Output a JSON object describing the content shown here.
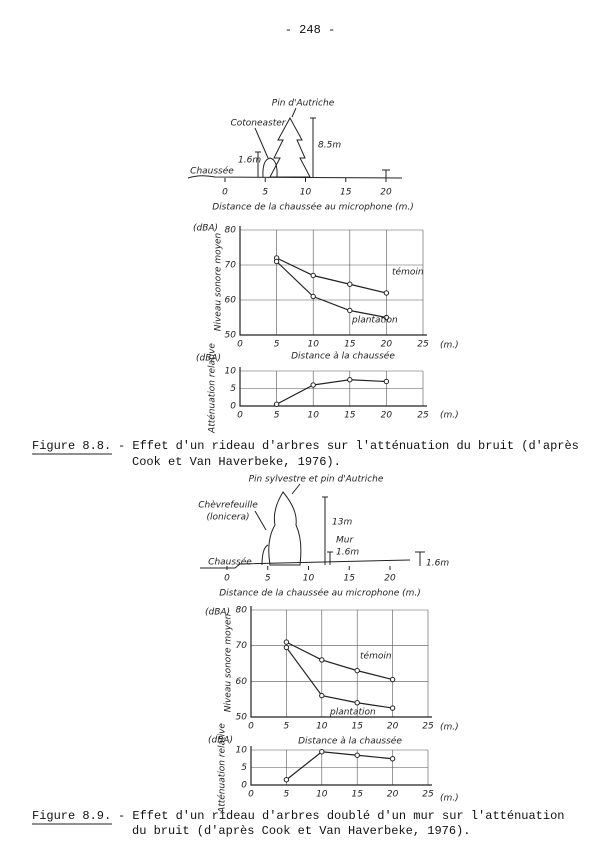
{
  "page_number": "- 248 -",
  "diagrams": [
    {
      "labels": [
        "Pin d'Autriche",
        "Cotoneaster",
        "1.6m",
        "8.5m",
        "Chaussée"
      ],
      "ticks": [
        0,
        5,
        10,
        15,
        20
      ],
      "axis_title": "Distance de la chaussée au microphone (m.)"
    },
    {
      "labels": [
        "Pin sylvestre et pin d'Autriche",
        "Chèvrefeuille",
        "(lonicera)",
        "13m",
        "Mur",
        "1.6m",
        "Chaussée",
        "1.6m"
      ],
      "ticks": [
        0,
        5,
        10,
        15,
        20
      ],
      "axis_title": "Distance de la chaussée au microphone (m.)"
    }
  ],
  "chart_data": [
    {
      "type": "line",
      "y_unit": "(dBA)",
      "x_unit": "(m.)",
      "ylabel": "Niveau sonore moyen",
      "xlabel": "Distance à la chaussée",
      "x": [
        5,
        10,
        15,
        20
      ],
      "xlim": [
        0,
        25
      ],
      "ylim": [
        50,
        80
      ],
      "xticks": [
        0,
        5,
        10,
        15,
        20,
        25
      ],
      "yticks": [
        50,
        60,
        70,
        80
      ],
      "grid": true,
      "series": [
        {
          "name": "témoin",
          "values": [
            72,
            67,
            64.5,
            62
          ]
        },
        {
          "name": "plantation",
          "values": [
            71,
            61,
            57,
            55
          ]
        }
      ]
    },
    {
      "type": "line",
      "y_unit": "(dBA)",
      "x_unit": "(m.)",
      "ylabel": "Atténuation relative",
      "x": [
        5,
        10,
        15,
        20
      ],
      "xlim": [
        0,
        25
      ],
      "ylim": [
        0,
        10
      ],
      "xticks": [
        0,
        5,
        10,
        15,
        20,
        25
      ],
      "yticks": [
        0,
        5,
        10
      ],
      "grid": true,
      "series": [
        {
          "values": [
            0.5,
            6,
            7.5,
            7
          ]
        }
      ]
    },
    {
      "type": "line",
      "y_unit": "(dBA)",
      "x_unit": "(m.)",
      "ylabel": "Niveau sonore moyen",
      "xlabel": "Distance à la chaussée",
      "x": [
        5,
        10,
        15,
        20
      ],
      "xlim": [
        0,
        25
      ],
      "ylim": [
        50,
        80
      ],
      "xticks": [
        0,
        5,
        10,
        15,
        20,
        25
      ],
      "yticks": [
        50,
        60,
        70,
        80
      ],
      "grid": true,
      "series": [
        {
          "name": "témoin",
          "values": [
            71,
            66,
            63,
            60.5
          ]
        },
        {
          "name": "plantation",
          "values": [
            69.5,
            56,
            54,
            52.5
          ]
        }
      ]
    },
    {
      "type": "line",
      "y_unit": "(dBA)",
      "x_unit": "(m.)",
      "ylabel": "Atténuation relative",
      "x": [
        5,
        10,
        15,
        20
      ],
      "xlim": [
        0,
        25
      ],
      "ylim": [
        0,
        10
      ],
      "xticks": [
        0,
        5,
        10,
        15,
        20,
        25
      ],
      "yticks": [
        0,
        5,
        10
      ],
      "grid": true,
      "series": [
        {
          "values": [
            1.5,
            9.5,
            8.5,
            7.5
          ]
        }
      ]
    }
  ],
  "captions": [
    {
      "label": "Figure 8.8.",
      "lines": [
        "- Effet d'un rideau d'arbres sur l'atténuation du bruit (d'après",
        "Cook et Van Haverbeke, 1976)."
      ]
    },
    {
      "label": "Figure 8.9.",
      "lines": [
        "- Effet d'un rideau d'arbres doublé d'un mur sur l'atténuation",
        "du bruit (d'après Cook et Van Haverbeke, 1976)."
      ]
    }
  ]
}
